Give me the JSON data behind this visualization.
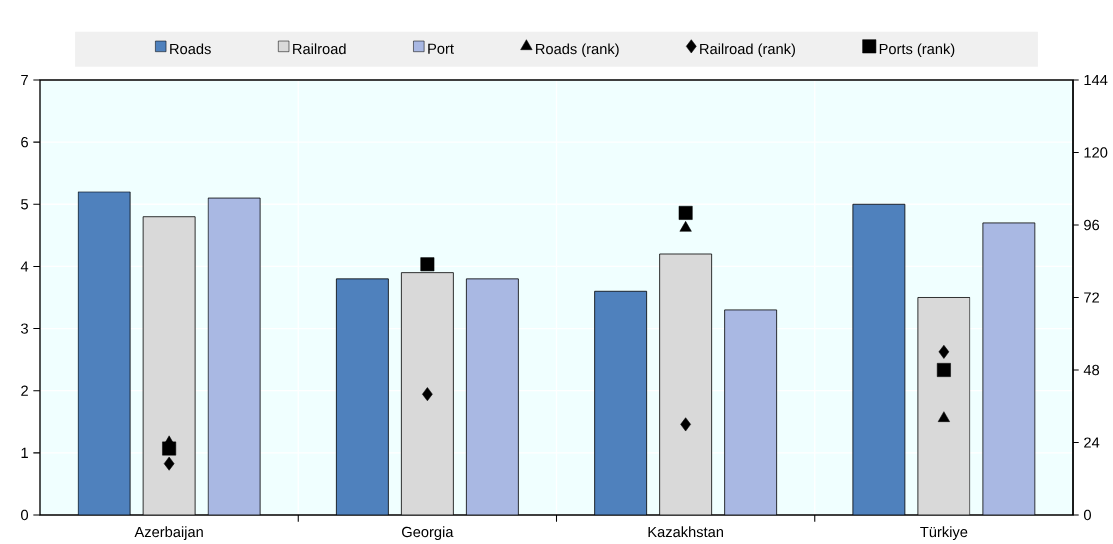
{
  "chart_data": {
    "type": "bar",
    "categories": [
      "Azerbaijan",
      "Georgia",
      "Kazakhstan",
      "Türkiye"
    ],
    "series": [
      {
        "name": "Roads",
        "color": "#4f81bd",
        "values": [
          5.2,
          3.8,
          3.6,
          5.0
        ]
      },
      {
        "name": "Railroad",
        "color": "#d9d9d9",
        "values": [
          4.8,
          3.9,
          4.2,
          3.5
        ]
      },
      {
        "name": "Port",
        "color": "#a9b8e3",
        "values": [
          5.1,
          3.8,
          3.3,
          4.7
        ]
      },
      {
        "name": "Roads (rank)",
        "type": "scatter",
        "axis": "y2",
        "marker": "triangle",
        "color": "#000000",
        "x": [
          "Azerbaijan",
          "Georgia",
          "Kazakhstan",
          "Türkiye"
        ],
        "values": [
          24,
          null,
          95,
          32
        ]
      },
      {
        "name": "Railroad (rank)",
        "type": "scatter",
        "axis": "y2",
        "marker": "diamond",
        "color": "#000000",
        "x": [
          "Azerbaijan",
          "Georgia",
          "Kazakhstan",
          "Türkiye"
        ],
        "values": [
          17,
          40,
          30,
          54
        ]
      },
      {
        "name": "Ports (rank)",
        "type": "scatter",
        "axis": "y2",
        "marker": "square",
        "color": "#000000",
        "x": [
          "Azerbaijan",
          "Georgia",
          "Kazakhstan",
          "Türkiye"
        ],
        "values": [
          22,
          83,
          100,
          48
        ]
      }
    ],
    "ylim": [
      0,
      7
    ],
    "yticks": [
      0,
      1,
      2,
      3,
      4,
      5,
      6,
      7
    ],
    "y2lim": [
      0,
      144
    ],
    "y2ticks": [
      0,
      24,
      48,
      72,
      96,
      120,
      144
    ],
    "grid": true,
    "legend": "top"
  }
}
